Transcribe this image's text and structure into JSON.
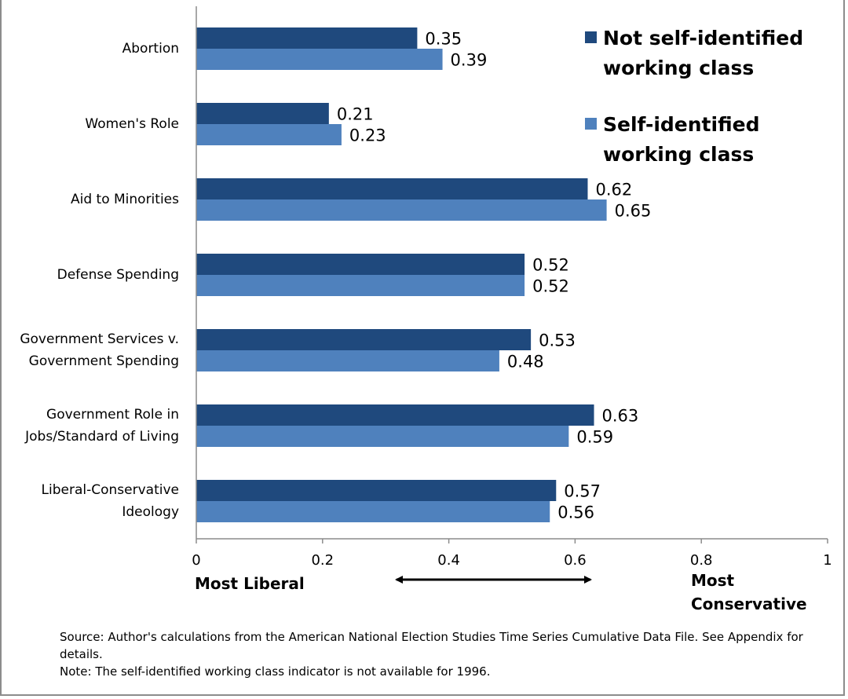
{
  "chart_data": {
    "type": "bar",
    "orientation": "horizontal",
    "categories": [
      "Abortion",
      "Women's Role",
      "Aid to Minorities",
      "Defense Spending",
      "Government Services v. Government Spending",
      "Government Role in Jobs/Standard of Living",
      "Liberal-Conservative Ideology"
    ],
    "series": [
      {
        "name": "Not self-identified working class",
        "color": "#1f497d",
        "values": [
          0.35,
          0.21,
          0.62,
          0.52,
          0.53,
          0.63,
          0.57
        ]
      },
      {
        "name": "Self-identified working class",
        "color": "#4f81bd",
        "values": [
          0.39,
          0.23,
          0.65,
          0.52,
          0.48,
          0.59,
          0.56
        ]
      }
    ],
    "xlim": [
      0,
      1
    ],
    "xticks": [
      "0",
      "0.2",
      "0.4",
      "0.6",
      "0.8",
      "1"
    ],
    "grid": false,
    "legend_position": "top-right",
    "axis_end_labels": {
      "left": "Most Liberal",
      "right": "Most Conservative"
    }
  },
  "notes": {
    "source": "Source: Author's calculations from the American National Election Studies Time Series Cumulative Data File. See Appendix for details.",
    "note": "Note: The self-identified working class indicator is not available for 1996."
  }
}
